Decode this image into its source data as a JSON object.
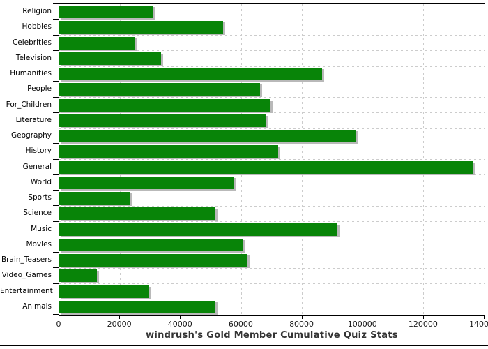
{
  "chart_data": {
    "type": "bar",
    "orientation": "horizontal",
    "title": "windrush's Gold Member Cumulative Quiz Stats",
    "categories": [
      "Religion",
      "Hobbies",
      "Celebrities",
      "Television",
      "Humanities",
      "People",
      "For_Children",
      "Literature",
      "Geography",
      "History",
      "General",
      "World",
      "Sports",
      "Science",
      "Music",
      "Movies",
      "Brain_Teasers",
      "Video_Games",
      "Entertainment",
      "Animals"
    ],
    "values": [
      31000,
      54000,
      25000,
      33500,
      86500,
      66000,
      69500,
      68000,
      97500,
      72000,
      136000,
      57500,
      23500,
      51500,
      91500,
      60500,
      62000,
      12500,
      29500,
      51500
    ],
    "xlabel": "",
    "ylabel": "",
    "xlim": [
      0,
      140000
    ],
    "x_tick_values": [
      0,
      20000,
      40000,
      60000,
      80000,
      100000,
      120000,
      140000
    ],
    "x_tick_labels": [
      "0",
      "20000",
      "40000",
      "60000",
      "80000",
      "100000",
      "120000",
      "140000"
    ],
    "grid": "dashed-both-axes",
    "legend": "none",
    "colors": {
      "bar_fill": "#088408",
      "bar_shadow": "#b9b9b9",
      "grid_line": "#cccccc",
      "frame": "#000000",
      "title_text": "#333333",
      "tick_text": "#1a1a1a",
      "background": "#ffffff"
    }
  }
}
